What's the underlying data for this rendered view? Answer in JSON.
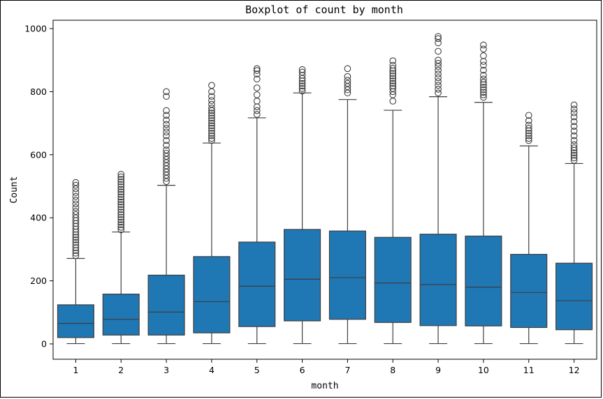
{
  "chart_data": {
    "type": "box",
    "title": "Boxplot of count by month",
    "xlabel": "month",
    "ylabel": "Count",
    "ylim": [
      -45,
      1030
    ],
    "yticks": [
      0,
      200,
      400,
      600,
      800,
      1000
    ],
    "box_color": "#1f77b4",
    "line_color": "#3f3f3f",
    "categories": [
      "1",
      "2",
      "3",
      "4",
      "5",
      "6",
      "7",
      "8",
      "9",
      "10",
      "11",
      "12"
    ],
    "series": [
      {
        "name": "1",
        "whisker_low": 1,
        "q1": 20,
        "median": 65,
        "q3": 124,
        "whisker_high": 271,
        "outliers": [
          280,
          288,
          296,
          305,
          314,
          322,
          330,
          338,
          346,
          355,
          364,
          373,
          382,
          391,
          400,
          410,
          420,
          432,
          444,
          456,
          468,
          480,
          492,
          503,
          512
        ]
      },
      {
        "name": "2",
        "whisker_low": 1,
        "q1": 28,
        "median": 78,
        "q3": 158,
        "whisker_high": 355,
        "outliers": [
          362,
          370,
          378,
          386,
          394,
          402,
          410,
          418,
          426,
          434,
          442,
          450,
          458,
          466,
          474,
          482,
          490,
          498,
          506,
          514,
          522,
          530,
          538
        ]
      },
      {
        "name": "3",
        "whisker_low": 1,
        "q1": 28,
        "median": 101,
        "q3": 218,
        "whisker_high": 503,
        "outliers": [
          515,
          525,
          535,
          545,
          555,
          565,
          575,
          585,
          595,
          605,
          615,
          630,
          645,
          660,
          672,
          684,
          696,
          710,
          725,
          740,
          785,
          800
        ]
      },
      {
        "name": "4",
        "whisker_low": 1,
        "q1": 35,
        "median": 134,
        "q3": 277,
        "whisker_high": 637,
        "outliers": [
          645,
          652,
          660,
          668,
          676,
          684,
          692,
          700,
          708,
          716,
          724,
          732,
          740,
          748,
          760,
          772,
          785,
          800,
          820
        ]
      },
      {
        "name": "5",
        "whisker_low": 1,
        "q1": 55,
        "median": 183,
        "q3": 323,
        "whisker_high": 717,
        "outliers": [
          728,
          740,
          752,
          770,
          790,
          812,
          840,
          856,
          867,
          873
        ]
      },
      {
        "name": "6",
        "whisker_low": 1,
        "q1": 73,
        "median": 205,
        "q3": 363,
        "whisker_high": 796,
        "outliers": [
          802,
          810,
          818,
          826,
          834,
          842,
          852,
          862,
          870
        ]
      },
      {
        "name": "7",
        "whisker_low": 1,
        "q1": 78,
        "median": 210,
        "q3": 358,
        "whisker_high": 775,
        "outliers": [
          796,
          806,
          816,
          826,
          836,
          848,
          873
        ]
      },
      {
        "name": "8",
        "whisker_low": 1,
        "q1": 68,
        "median": 193,
        "q3": 338,
        "whisker_high": 741,
        "outliers": [
          770,
          790,
          800,
          810,
          818,
          826,
          834,
          842,
          850,
          858,
          866,
          874,
          884,
          898
        ]
      },
      {
        "name": "9",
        "whisker_low": 1,
        "q1": 58,
        "median": 188,
        "q3": 348,
        "whisker_high": 784,
        "outliers": [
          796,
          808,
          820,
          832,
          844,
          856,
          868,
          880,
          890,
          900,
          928,
          955,
          968,
          975
        ]
      },
      {
        "name": "10",
        "whisker_low": 1,
        "q1": 57,
        "median": 180,
        "q3": 342,
        "whisker_high": 766,
        "outliers": [
          782,
          790,
          798,
          806,
          814,
          822,
          830,
          840,
          852,
          868,
          884,
          896,
          914,
          935,
          948
        ]
      },
      {
        "name": "11",
        "whisker_low": 1,
        "q1": 52,
        "median": 163,
        "q3": 284,
        "whisker_high": 628,
        "outliers": [
          645,
          652,
          660,
          668,
          676,
          684,
          694,
          708,
          725
        ]
      },
      {
        "name": "12",
        "whisker_low": 1,
        "q1": 45,
        "median": 137,
        "q3": 256,
        "whisker_high": 572,
        "outliers": [
          582,
          590,
          598,
          606,
          614,
          622,
          632,
          645,
          660,
          675,
          690,
          705,
          720,
          733,
          745,
          758
        ]
      }
    ]
  }
}
